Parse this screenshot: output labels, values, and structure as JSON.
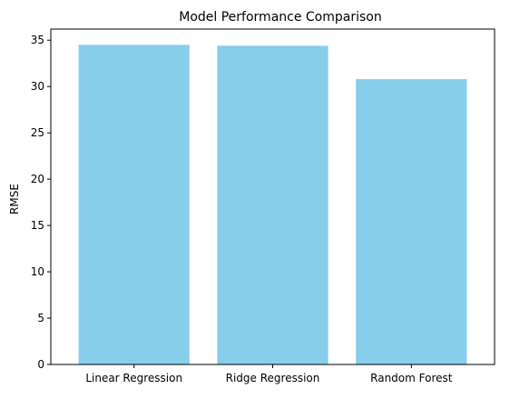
{
  "chart_data": {
    "type": "bar",
    "title": "Model Performance Comparison",
    "xlabel": "",
    "ylabel": "RMSE",
    "categories": [
      "Linear Regression",
      "Ridge Regression",
      "Random Forest"
    ],
    "values": [
      34.5,
      34.4,
      30.8
    ],
    "ylim": [
      0,
      36.2
    ],
    "yticks": [
      0,
      5,
      10,
      15,
      20,
      25,
      30,
      35
    ],
    "grid": false,
    "legend": "none",
    "bar_color": "#87ceeb"
  }
}
